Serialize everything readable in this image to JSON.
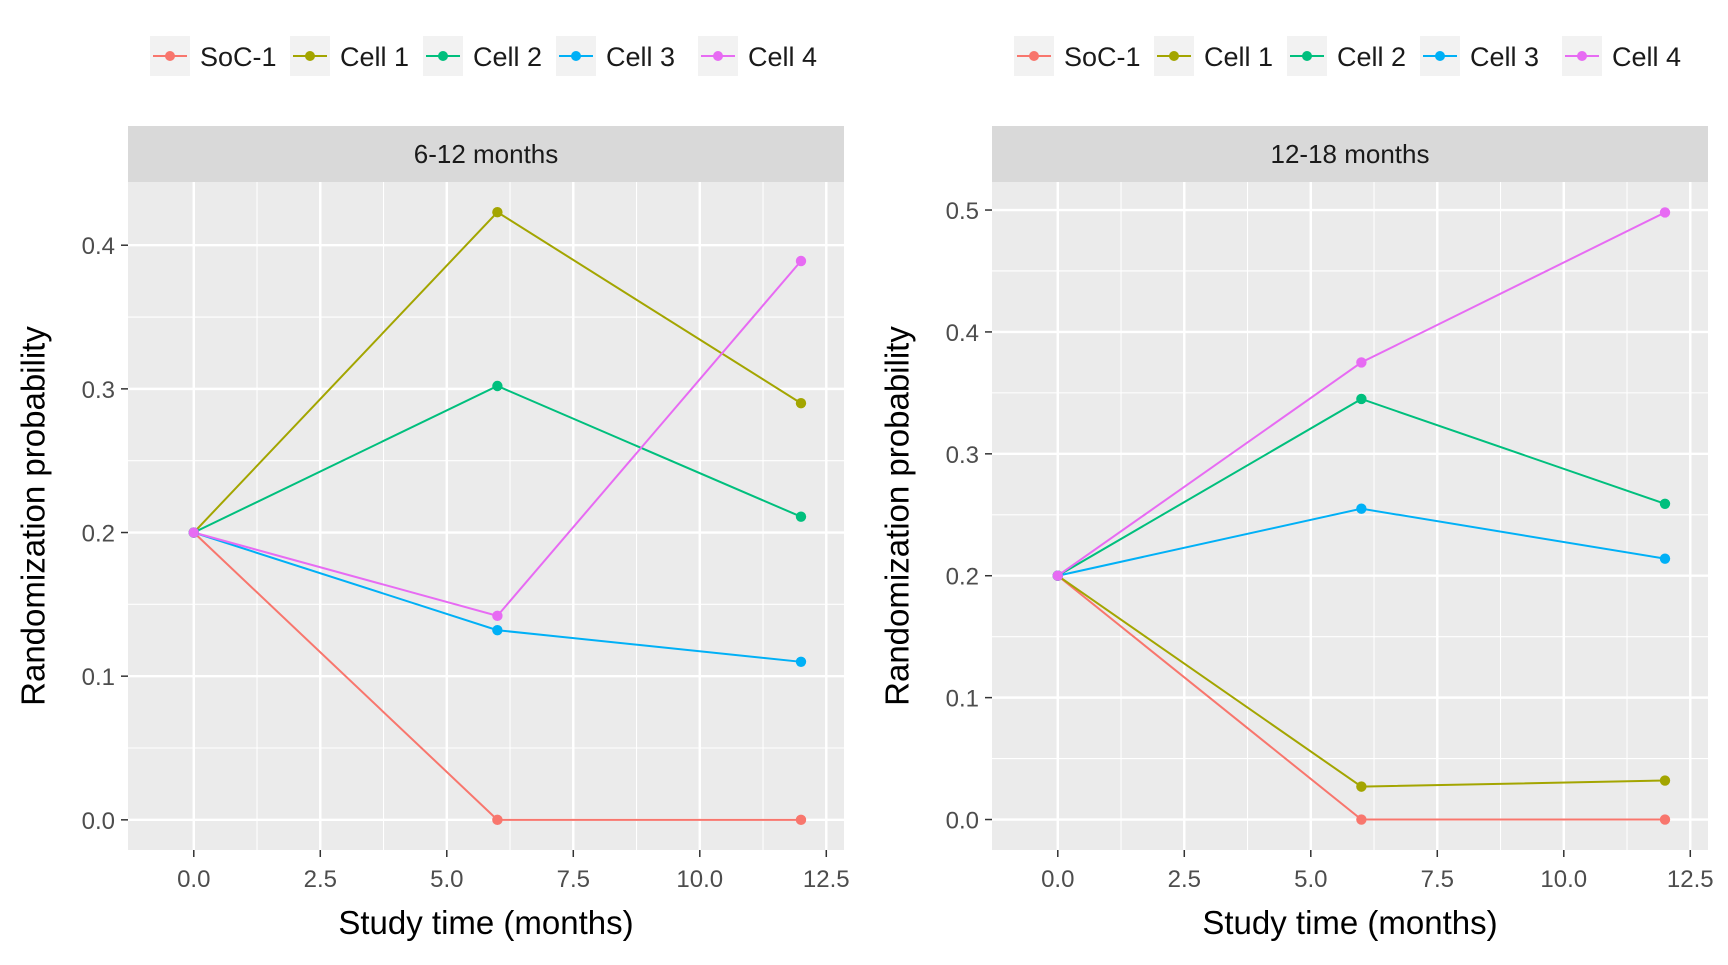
{
  "chart_data": [
    {
      "type": "line",
      "title": "",
      "facet_label": "6-12 months",
      "xlabel": "Study time (months)",
      "ylabel": "Randomization probability",
      "xlim": [
        -1.3,
        12.85
      ],
      "ylim": [
        -0.021,
        0.444
      ],
      "xticks": [
        0,
        2.5,
        5,
        7.5,
        10,
        12.5
      ],
      "xtick_labels": [
        "0.0",
        "2.5",
        "5.0",
        "7.5",
        "10.0",
        "12.5"
      ],
      "yticks": [
        0,
        0.1,
        0.2,
        0.3,
        0.4
      ],
      "ytick_labels": [
        "0.0",
        "0.1",
        "0.2",
        "0.3",
        "0.4"
      ],
      "grid": true,
      "legend_position": "top",
      "x": [
        0,
        6,
        12
      ],
      "series": [
        {
          "name": "SoC-1",
          "color": "#F8766D",
          "values": [
            0.2,
            0.0,
            0.0
          ]
        },
        {
          "name": "Cell 1",
          "color": "#A3A500",
          "values": [
            0.2,
            0.423,
            0.29
          ]
        },
        {
          "name": "Cell 2",
          "color": "#00BF7D",
          "values": [
            0.2,
            0.302,
            0.211
          ]
        },
        {
          "name": "Cell 3",
          "color": "#00B0F6",
          "values": [
            0.2,
            0.132,
            0.11
          ]
        },
        {
          "name": "Cell 4",
          "color": "#E76BF3",
          "values": [
            0.2,
            0.142,
            0.389
          ]
        }
      ]
    },
    {
      "type": "line",
      "title": "",
      "facet_label": "12-18 months",
      "xlabel": "Study time (months)",
      "ylabel": "Randomization probability",
      "xlim": [
        -1.3,
        12.85
      ],
      "ylim": [
        -0.025,
        0.523
      ],
      "xticks": [
        0,
        2.5,
        5,
        7.5,
        10,
        12.5
      ],
      "xtick_labels": [
        "0.0",
        "2.5",
        "5.0",
        "7.5",
        "10.0",
        "12.5"
      ],
      "yticks": [
        0,
        0.1,
        0.2,
        0.3,
        0.4,
        0.5
      ],
      "ytick_labels": [
        "0.0",
        "0.1",
        "0.2",
        "0.3",
        "0.4",
        "0.5"
      ],
      "grid": true,
      "legend_position": "top",
      "x": [
        0,
        6,
        12
      ],
      "series": [
        {
          "name": "SoC-1",
          "color": "#F8766D",
          "values": [
            0.2,
            0.0,
            0.0
          ]
        },
        {
          "name": "Cell 1",
          "color": "#A3A500",
          "values": [
            0.2,
            0.027,
            0.032
          ]
        },
        {
          "name": "Cell 2",
          "color": "#00BF7D",
          "values": [
            0.2,
            0.345,
            0.259
          ]
        },
        {
          "name": "Cell 3",
          "color": "#00B0F6",
          "values": [
            0.2,
            0.255,
            0.214
          ]
        },
        {
          "name": "Cell 4",
          "color": "#E76BF3",
          "values": [
            0.2,
            0.375,
            0.498
          ]
        }
      ]
    }
  ]
}
